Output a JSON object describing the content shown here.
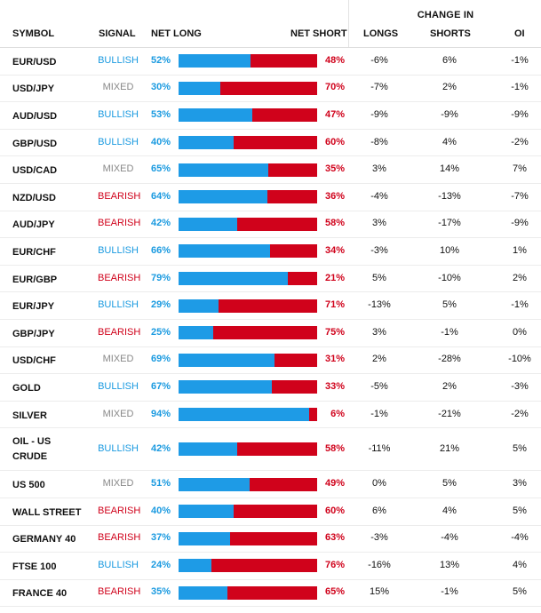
{
  "change_in_label": "CHANGE IN",
  "headers": {
    "symbol": "SYMBOL",
    "signal": "SIGNAL",
    "net_long": "NET LONG",
    "net_short": "NET SHORT",
    "longs": "LONGS",
    "shorts": "SHORTS",
    "oi": "OI"
  },
  "colors": {
    "long_blue": "#1e9be6",
    "short_red": "#d0021b",
    "bullish": "#1a9ae0",
    "bearish": "#d0021b",
    "mixed": "#888888"
  },
  "rows": [
    {
      "symbol": "EUR/USD",
      "signal": "BULLISH",
      "net_long": "52%",
      "net_short": "48%",
      "long_fraction": 0.52,
      "longs": "-6%",
      "shorts": "6%",
      "oi": "-1%"
    },
    {
      "symbol": "USD/JPY",
      "signal": "MIXED",
      "net_long": "30%",
      "net_short": "70%",
      "long_fraction": 0.3,
      "longs": "-7%",
      "shorts": "2%",
      "oi": "-1%"
    },
    {
      "symbol": "AUD/USD",
      "signal": "BULLISH",
      "net_long": "53%",
      "net_short": "47%",
      "long_fraction": 0.53,
      "longs": "-9%",
      "shorts": "-9%",
      "oi": "-9%"
    },
    {
      "symbol": "GBP/USD",
      "signal": "BULLISH",
      "net_long": "40%",
      "net_short": "60%",
      "long_fraction": 0.4,
      "longs": "-8%",
      "shorts": "4%",
      "oi": "-2%"
    },
    {
      "symbol": "USD/CAD",
      "signal": "MIXED",
      "net_long": "65%",
      "net_short": "35%",
      "long_fraction": 0.65,
      "longs": "3%",
      "shorts": "14%",
      "oi": "7%"
    },
    {
      "symbol": "NZD/USD",
      "signal": "BEARISH",
      "net_long": "64%",
      "net_short": "36%",
      "long_fraction": 0.64,
      "longs": "-4%",
      "shorts": "-13%",
      "oi": "-7%"
    },
    {
      "symbol": "AUD/JPY",
      "signal": "BEARISH",
      "net_long": "42%",
      "net_short": "58%",
      "long_fraction": 0.42,
      "longs": "3%",
      "shorts": "-17%",
      "oi": "-9%"
    },
    {
      "symbol": "EUR/CHF",
      "signal": "BULLISH",
      "net_long": "66%",
      "net_short": "34%",
      "long_fraction": 0.66,
      "longs": "-3%",
      "shorts": "10%",
      "oi": "1%"
    },
    {
      "symbol": "EUR/GBP",
      "signal": "BEARISH",
      "net_long": "79%",
      "net_short": "21%",
      "long_fraction": 0.79,
      "longs": "5%",
      "shorts": "-10%",
      "oi": "2%"
    },
    {
      "symbol": "EUR/JPY",
      "signal": "BULLISH",
      "net_long": "29%",
      "net_short": "71%",
      "long_fraction": 0.29,
      "longs": "-13%",
      "shorts": "5%",
      "oi": "-1%"
    },
    {
      "symbol": "GBP/JPY",
      "signal": "BEARISH",
      "net_long": "25%",
      "net_short": "75%",
      "long_fraction": 0.25,
      "longs": "3%",
      "shorts": "-1%",
      "oi": "0%"
    },
    {
      "symbol": "USD/CHF",
      "signal": "MIXED",
      "net_long": "69%",
      "net_short": "31%",
      "long_fraction": 0.69,
      "longs": "2%",
      "shorts": "-28%",
      "oi": "-10%"
    },
    {
      "symbol": "GOLD",
      "signal": "BULLISH",
      "net_long": "67%",
      "net_short": "33%",
      "long_fraction": 0.67,
      "longs": "-5%",
      "shorts": "2%",
      "oi": "-3%"
    },
    {
      "symbol": "SILVER",
      "signal": "MIXED",
      "net_long": "94%",
      "net_short": "6%",
      "long_fraction": 0.94,
      "longs": "-1%",
      "shorts": "-21%",
      "oi": "-2%"
    },
    {
      "symbol": "OIL - US CRUDE",
      "signal": "BULLISH",
      "net_long": "42%",
      "net_short": "58%",
      "long_fraction": 0.42,
      "longs": "-11%",
      "shorts": "21%",
      "oi": "5%"
    },
    {
      "symbol": "US 500",
      "signal": "MIXED",
      "net_long": "51%",
      "net_short": "49%",
      "long_fraction": 0.51,
      "longs": "0%",
      "shorts": "5%",
      "oi": "3%"
    },
    {
      "symbol": "WALL STREET",
      "signal": "BEARISH",
      "net_long": "40%",
      "net_short": "60%",
      "long_fraction": 0.4,
      "longs": "6%",
      "shorts": "4%",
      "oi": "5%"
    },
    {
      "symbol": "GERMANY 40",
      "signal": "BEARISH",
      "net_long": "37%",
      "net_short": "63%",
      "long_fraction": 0.37,
      "longs": "-3%",
      "shorts": "-4%",
      "oi": "-4%"
    },
    {
      "symbol": "FTSE 100",
      "signal": "BULLISH",
      "net_long": "24%",
      "net_short": "76%",
      "long_fraction": 0.24,
      "longs": "-16%",
      "shorts": "13%",
      "oi": "4%"
    },
    {
      "symbol": "FRANCE 40",
      "signal": "BEARISH",
      "net_long": "35%",
      "net_short": "65%",
      "long_fraction": 0.35,
      "longs": "15%",
      "shorts": "-1%",
      "oi": "5%"
    }
  ]
}
